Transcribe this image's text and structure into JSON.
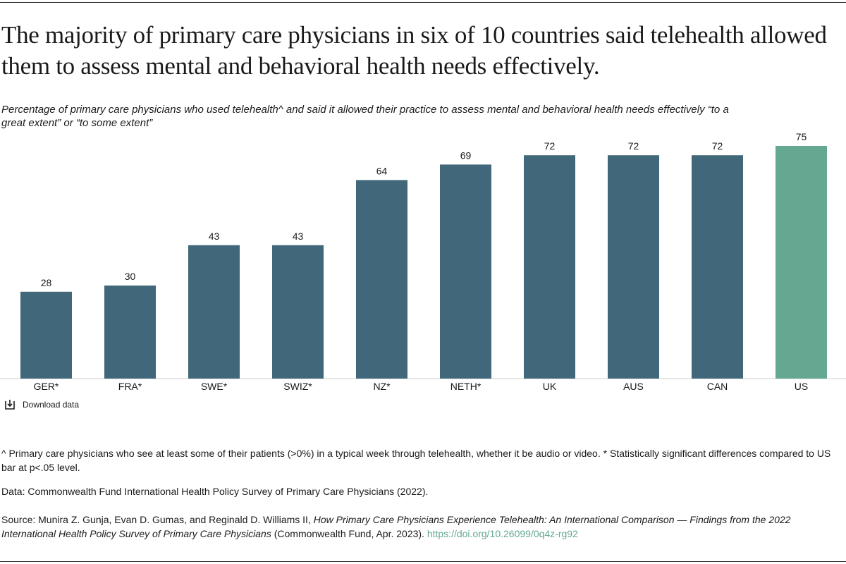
{
  "chart_data": {
    "type": "bar",
    "title": "The majority of primary care physicians in six of 10 countries said telehealth allowed them to assess mental and behavioral health needs effectively.",
    "subtitle": "Percentage of primary care physicians who used telehealth^ and said it allowed their practice to assess mental and behavioral health needs effectively “to a great extent” or “to some extent”",
    "categories": [
      "GER*",
      "FRA*",
      "SWE*",
      "SWIZ*",
      "NZ*",
      "NETH*",
      "UK",
      "AUS",
      "CAN",
      "US"
    ],
    "values": [
      28,
      30,
      43,
      43,
      64,
      69,
      72,
      72,
      72,
      75
    ],
    "colors": [
      "#41687a",
      "#41687a",
      "#41687a",
      "#41687a",
      "#41687a",
      "#41687a",
      "#41687a",
      "#41687a",
      "#41687a",
      "#65a892"
    ],
    "ylim": [
      0,
      75
    ],
    "grid": false
  },
  "download_label": "Download data",
  "notes": {
    "footnote": "^ Primary care physicians who see at least some of their patients (>0%) in a typical week through telehealth, whether it be audio or video. * Statistically significant differences compared to US bar at p<.05 level.",
    "data": "Data: Commonwealth Fund International Health Policy Survey of Primary Care Physicians (2022).",
    "source_intro": "Source: Munira Z. Gunja, Evan D. Gumas, and Reginald D. Williams II, ",
    "source_title": "How Primary Care Physicians Experience Telehealth: An International Comparison — Findings from the 2022 International Health Policy Survey of Primary Care Physicians",
    "source_publisher": " (Commonwealth Fund, Apr. 2023). ",
    "source_link": "https://doi.org/10.26099/0q4z-rg92"
  }
}
